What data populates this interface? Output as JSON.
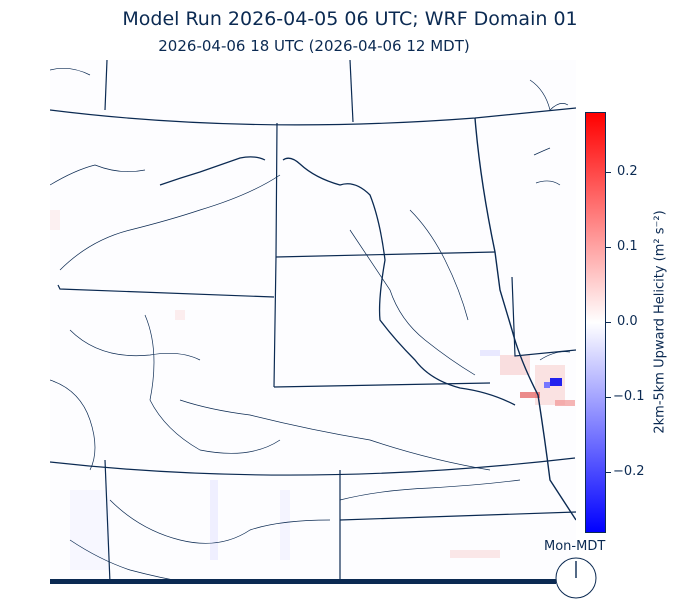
{
  "header": {
    "title": "Model Run 2026-04-05 06 UTC; WRF Domain 01",
    "subtitle": "2026-04-06 18 UTC  (2026-04-06 12 MDT)"
  },
  "colorbar": {
    "label": "2km-5km Upward Helicity (m² s⁻²)",
    "ticks": [
      "0.2",
      "0.1",
      "0.0",
      "−0.1",
      "−0.2"
    ],
    "colors": {
      "max": "#ff0000",
      "mid": "#ffffff",
      "min": "#0000ff"
    }
  },
  "clock": {
    "label": "Mon-MDT"
  },
  "colors": {
    "line": "#0b2a52"
  }
}
